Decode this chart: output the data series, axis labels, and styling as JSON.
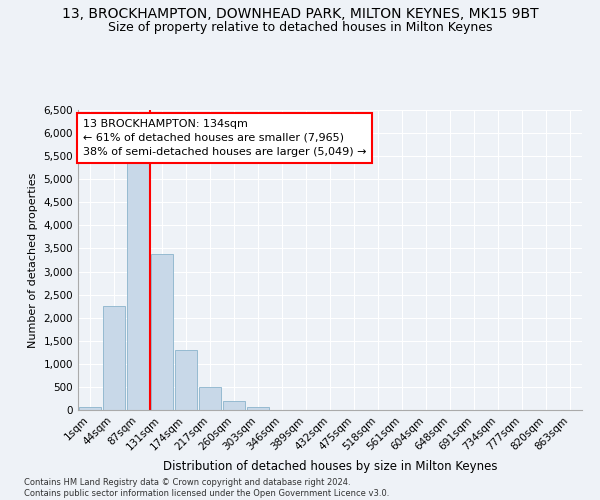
{
  "title": "13, BROCKHAMPTON, DOWNHEAD PARK, MILTON KEYNES, MK15 9BT",
  "subtitle": "Size of property relative to detached houses in Milton Keynes",
  "xlabel": "Distribution of detached houses by size in Milton Keynes",
  "ylabel": "Number of detached properties",
  "footer_line1": "Contains HM Land Registry data © Crown copyright and database right 2024.",
  "footer_line2": "Contains public sector information licensed under the Open Government Licence v3.0.",
  "bar_labels": [
    "1sqm",
    "44sqm",
    "87sqm",
    "131sqm",
    "174sqm",
    "217sqm",
    "260sqm",
    "303sqm",
    "346sqm",
    "389sqm",
    "432sqm",
    "475sqm",
    "518sqm",
    "561sqm",
    "604sqm",
    "648sqm",
    "691sqm",
    "734sqm",
    "777sqm",
    "820sqm",
    "863sqm"
  ],
  "bar_values": [
    60,
    2260,
    5420,
    3380,
    1300,
    490,
    190,
    70,
    0,
    0,
    0,
    0,
    0,
    0,
    0,
    0,
    0,
    0,
    0,
    0,
    0
  ],
  "bar_color": "#c8d8e8",
  "bar_edge_color": "#8ab4cc",
  "marker_label_line1": "13 BROCKHAMPTON: 134sqm",
  "marker_label_line2": "← 61% of detached houses are smaller (7,965)",
  "marker_label_line3": "38% of semi-detached houses are larger (5,049) →",
  "marker_color": "red",
  "ylim": [
    0,
    6500
  ],
  "yticks": [
    0,
    500,
    1000,
    1500,
    2000,
    2500,
    3000,
    3500,
    4000,
    4500,
    5000,
    5500,
    6000,
    6500
  ],
  "background_color": "#eef2f7",
  "grid_color": "#ffffff",
  "title_fontsize": 10,
  "subtitle_fontsize": 9,
  "annotation_fontsize": 8,
  "ylabel_fontsize": 8,
  "xlabel_fontsize": 8.5
}
